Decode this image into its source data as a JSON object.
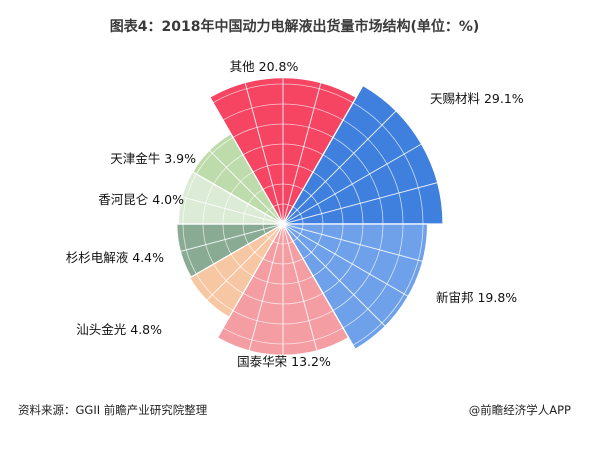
{
  "chart_data": {
    "type": "pie",
    "subtype": "rose",
    "title": "图表4：2018年中国动力电解液出货量市场结构(单位：%)",
    "unit": "%",
    "slices": [
      {
        "name": "天赐材料",
        "value": 29.1,
        "label": "天赐材料  29.1%",
        "color": "#3f7fde"
      },
      {
        "name": "新宙邦",
        "value": 19.8,
        "label": "新宙邦  19.8%",
        "color": "#6ea1ea"
      },
      {
        "name": "国泰华荣",
        "value": 13.2,
        "label": "国泰华荣 13.2%",
        "color": "#f49ea3"
      },
      {
        "name": "汕头金光",
        "value": 4.8,
        "label": "汕头金光 4.8%",
        "color": "#f7c7a3"
      },
      {
        "name": "杉杉电解液",
        "value": 4.4,
        "label": "杉杉电解液 4.4%",
        "color": "#89ab94"
      },
      {
        "name": "香河昆仑",
        "value": 4.0,
        "label": "香河昆仑 4.0%",
        "color": "#dcebd5"
      },
      {
        "name": "天津金牛",
        "value": 3.9,
        "label": "天津金牛 3.9%",
        "color": "#bedcab"
      },
      {
        "name": "其他",
        "value": 20.8,
        "label": "其他 20.8%",
        "color": "#f54562"
      }
    ]
  },
  "footer": {
    "source": "资料来源：GGII 前瞻产业研究院整理",
    "credit": "@前瞻经济学人APP"
  }
}
